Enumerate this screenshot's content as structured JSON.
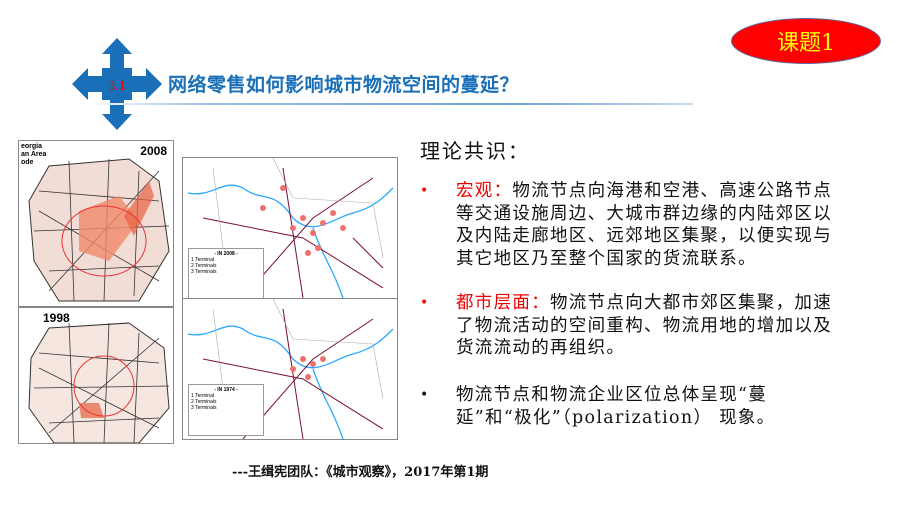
{
  "badge": {
    "label": "课题1",
    "color": "#ff0000",
    "text_color": "#ffff00"
  },
  "section": {
    "number": "3.1",
    "title": "网络零售如何影响城市物流空间的蔓延？",
    "icon": "four-arrow-compass-icon",
    "accent": "#1a70b8"
  },
  "content": {
    "heading": "理论共识：",
    "bullets": [
      {
        "label": "宏观：",
        "text": "物流节点向海港和空港、高速公路节点等交通设施周边、大城市群边缘的内陆郊区以及内陆走廊地区、远郊地区集聚，以便实现与其它地区乃至整个国家的货流联系。",
        "bullet_color": "#e00000"
      },
      {
        "label": "都市层面：",
        "text": "物流节点向大都市郊区集聚，加速了物流活动的空间重构、物流用地的增加以及货流流动的再组织。",
        "bullet_color": "#e00000"
      },
      {
        "label": "",
        "text": "物流节点和物流企业区位总体呈现“蔓延”和“极化”（polarization） 现象。",
        "bullet_color": "#111111"
      }
    ]
  },
  "maps": [
    {
      "year": "2008",
      "legend_lines": [
        "eorgia",
        "an Area",
        "ode"
      ]
    },
    {
      "year": "1998"
    },
    {
      "legend_title": "- IN 2008 -",
      "legend_items": [
        "1 Terminal",
        "2 Terminals",
        "3 Terminals"
      ]
    },
    {
      "legend_title": "- IN 1974 -",
      "legend_items": [
        "1 Terminal",
        "2 Terminals",
        "3 Terminals"
      ]
    }
  ],
  "citation": "---王缉宪团队：《城市观察》，2017年第1期"
}
